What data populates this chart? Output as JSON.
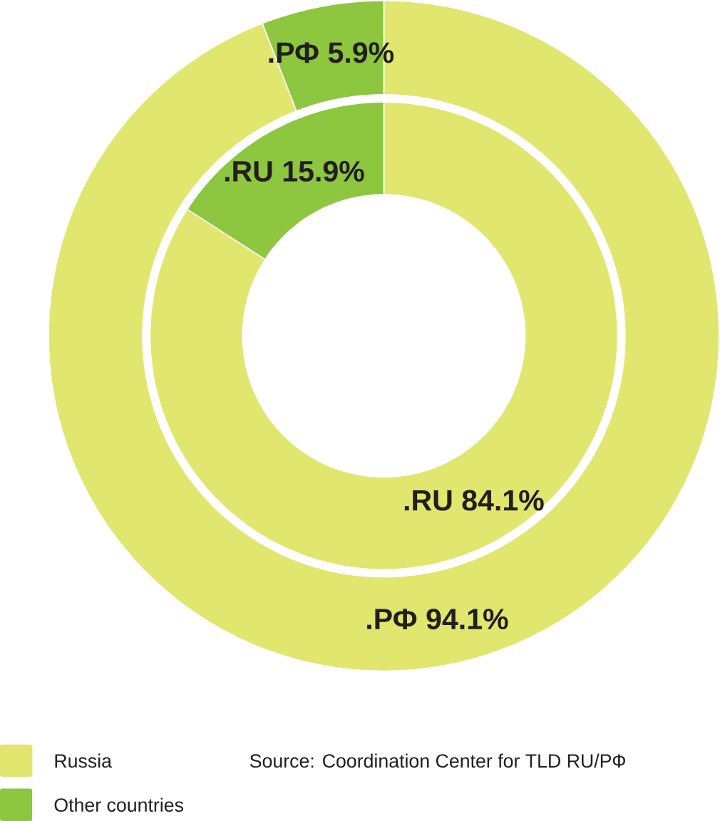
{
  "chart_data": {
    "type": "donut",
    "categories": [
      "Russia",
      "Other countries"
    ],
    "colors": [
      "#e0e66e",
      "#8dc63f"
    ],
    "series": [
      {
        "values": [
          84.1,
          15.9
        ],
        "value_labels": [
          ".RU 84.1%",
          ".RU 15.9%"
        ]
      },
      {
        "values": [
          94.1,
          5.9
        ],
        "value_labels": [
          ".РФ 94.1%",
          ".РФ 5.9%"
        ]
      }
    ],
    "legend": "bottom left",
    "annotations": [
      "Source: Coordination Center for TLD RU/РФ"
    ]
  }
}
